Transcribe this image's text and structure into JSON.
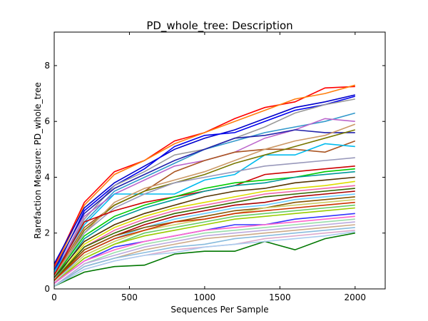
{
  "chart_data": {
    "type": "line",
    "title": "PD_whole_tree: Description",
    "xlabel": "Sequences Per Sample",
    "ylabel": "Rarefaction Measure: PD_whole_tree",
    "xlim": [
      0,
      2200
    ],
    "ylim": [
      0,
      9.2
    ],
    "xticks": [
      0,
      500,
      1000,
      1500,
      2000
    ],
    "yticks": [
      0,
      2,
      4,
      6,
      8
    ],
    "xtick_labels": [
      "0",
      "500",
      "1000",
      "1500",
      "2000"
    ],
    "ytick_labels": [
      "0",
      "2",
      "4",
      "6",
      "8"
    ],
    "grid": false,
    "legend": "none",
    "x": [
      0,
      200,
      400,
      600,
      800,
      1000,
      1200,
      1400,
      1600,
      1800,
      2000
    ],
    "series": [
      {
        "color": "#ff0000",
        "values": [
          0.8,
          3.1,
          4.2,
          4.6,
          5.3,
          5.6,
          6.1,
          6.5,
          6.7,
          7.2,
          7.25
        ]
      },
      {
        "color": "#ff7f0e",
        "values": [
          0.7,
          3.0,
          4.1,
          4.6,
          5.2,
          5.6,
          6.0,
          6.4,
          6.8,
          7.0,
          7.3
        ]
      },
      {
        "color": "#0000cc",
        "values": [
          0.9,
          2.9,
          3.8,
          4.4,
          5.0,
          5.4,
          5.7,
          6.1,
          6.5,
          6.7,
          6.95
        ]
      },
      {
        "color": "#0000ee",
        "values": [
          0.6,
          2.8,
          3.7,
          4.3,
          5.1,
          5.5,
          5.6,
          6.0,
          6.4,
          6.6,
          6.9
        ]
      },
      {
        "color": "#999999",
        "values": [
          0.5,
          2.5,
          3.7,
          4.2,
          4.8,
          5.0,
          5.4,
          5.8,
          6.3,
          6.6,
          6.8
        ]
      },
      {
        "color": "#3399cc",
        "values": [
          0.6,
          2.4,
          3.5,
          4.0,
          4.5,
          5.0,
          5.3,
          5.6,
          5.8,
          6.0,
          6.3
        ]
      },
      {
        "color": "#bb66cc",
        "values": [
          0.5,
          2.6,
          3.4,
          3.9,
          4.4,
          4.6,
          4.9,
          5.4,
          5.7,
          6.1,
          6.0
        ]
      },
      {
        "color": "#2222aa",
        "values": [
          0.7,
          2.7,
          3.6,
          4.1,
          4.6,
          5.0,
          5.4,
          5.5,
          5.7,
          5.6,
          5.6
        ]
      },
      {
        "color": "#aa5522",
        "values": [
          0.5,
          2.2,
          3.0,
          3.5,
          4.2,
          4.6,
          4.9,
          5.0,
          5.0,
          4.9,
          5.3
        ]
      },
      {
        "color": "#00bbee",
        "values": [
          0.6,
          2.3,
          3.4,
          3.4,
          3.4,
          3.9,
          4.1,
          4.8,
          4.8,
          5.2,
          5.1
        ]
      },
      {
        "color": "#777700",
        "values": [
          0.4,
          2.1,
          3.0,
          3.5,
          3.8,
          4.1,
          4.5,
          4.8,
          5.1,
          5.4,
          5.7
        ]
      },
      {
        "color": "#cc9966",
        "values": [
          0.5,
          2.0,
          3.1,
          3.6,
          3.9,
          4.2,
          4.6,
          5.0,
          5.3,
          5.5,
          5.9
        ]
      },
      {
        "color": "#9999bb",
        "values": [
          0.4,
          2.0,
          2.9,
          3.4,
          3.8,
          4.0,
          4.2,
          4.4,
          4.5,
          4.6,
          4.7
        ]
      },
      {
        "color": "#cc0000",
        "values": [
          0.5,
          2.4,
          2.8,
          3.1,
          3.3,
          3.5,
          3.7,
          4.1,
          4.2,
          4.3,
          4.4
        ]
      },
      {
        "color": "#00cc00",
        "values": [
          0.4,
          1.9,
          2.6,
          3.0,
          3.3,
          3.6,
          3.8,
          3.9,
          4.0,
          4.2,
          4.3
        ]
      },
      {
        "color": "#009999",
        "values": [
          0.3,
          1.8,
          2.5,
          2.9,
          3.2,
          3.5,
          3.7,
          3.8,
          4.0,
          4.1,
          4.2
        ]
      },
      {
        "color": "#553300",
        "values": [
          0.4,
          1.7,
          2.3,
          2.7,
          3.0,
          3.3,
          3.5,
          3.6,
          3.8,
          3.9,
          4.0
        ]
      },
      {
        "color": "#dddd00",
        "values": [
          0.3,
          1.6,
          2.2,
          2.6,
          2.9,
          3.1,
          3.3,
          3.5,
          3.6,
          3.7,
          3.85
        ]
      },
      {
        "color": "#ee66aa",
        "values": [
          0.3,
          1.5,
          2.1,
          2.5,
          2.8,
          3.0,
          3.2,
          3.4,
          3.5,
          3.6,
          3.7
        ]
      },
      {
        "color": "#336600",
        "values": [
          0.3,
          1.5,
          2.0,
          2.4,
          2.7,
          2.9,
          3.1,
          3.3,
          3.4,
          3.5,
          3.6
        ]
      },
      {
        "color": "#aa0000",
        "values": [
          0.3,
          1.4,
          1.9,
          2.3,
          2.6,
          2.8,
          3.0,
          3.1,
          3.3,
          3.4,
          3.5
        ]
      },
      {
        "color": "#66ccff",
        "values": [
          0.2,
          1.3,
          1.8,
          2.2,
          2.5,
          2.7,
          2.9,
          3.0,
          3.2,
          3.3,
          3.4
        ]
      },
      {
        "color": "#885500",
        "values": [
          0.3,
          1.4,
          1.9,
          2.2,
          2.4,
          2.6,
          2.8,
          2.9,
          3.1,
          3.2,
          3.3
        ]
      },
      {
        "color": "#cccc66",
        "values": [
          0.2,
          1.2,
          1.7,
          2.1,
          2.3,
          2.5,
          2.7,
          2.9,
          3.0,
          3.1,
          3.2
        ]
      },
      {
        "color": "#cc3300",
        "values": [
          0.3,
          1.3,
          1.8,
          2.1,
          2.4,
          2.5,
          2.7,
          2.8,
          2.9,
          3.0,
          3.1
        ]
      },
      {
        "color": "#66cc66",
        "values": [
          0.2,
          1.1,
          1.6,
          2.0,
          2.2,
          2.4,
          2.6,
          2.7,
          2.8,
          2.9,
          3.0
        ]
      },
      {
        "color": "#99cc00",
        "values": [
          0.2,
          1.1,
          1.6,
          1.9,
          2.1,
          2.3,
          2.5,
          2.6,
          2.7,
          2.8,
          2.9
        ]
      },
      {
        "color": "#3333ff",
        "values": [
          0.2,
          1.0,
          1.5,
          1.7,
          1.9,
          2.1,
          2.3,
          2.3,
          2.5,
          2.6,
          2.7
        ]
      },
      {
        "color": "#ff66cc",
        "values": [
          0.2,
          1.0,
          1.4,
          1.7,
          1.9,
          2.1,
          2.2,
          2.3,
          2.4,
          2.5,
          2.6
        ]
      },
      {
        "color": "#99ddaa",
        "values": [
          0.1,
          0.9,
          1.3,
          1.6,
          1.8,
          2.0,
          2.1,
          2.2,
          2.3,
          2.4,
          2.5
        ]
      },
      {
        "color": "#bbaadd",
        "values": [
          0.1,
          0.9,
          1.2,
          1.5,
          1.7,
          1.9,
          2.0,
          2.1,
          2.2,
          2.3,
          2.4
        ]
      },
      {
        "color": "#ccaa88",
        "values": [
          0.1,
          0.8,
          1.1,
          1.4,
          1.6,
          1.8,
          1.9,
          2.0,
          2.1,
          2.2,
          2.3
        ]
      },
      {
        "color": "#88bbdd",
        "values": [
          0.1,
          0.8,
          1.1,
          1.3,
          1.5,
          1.6,
          1.8,
          1.9,
          2.0,
          2.1,
          2.2
        ]
      },
      {
        "color": "#ddaacc",
        "values": [
          0.1,
          0.7,
          1.0,
          1.2,
          1.4,
          1.5,
          1.6,
          1.8,
          1.9,
          2.0,
          2.1
        ]
      },
      {
        "color": "#007700",
        "values": [
          0.1,
          0.6,
          0.8,
          0.85,
          1.25,
          1.35,
          1.35,
          1.7,
          1.4,
          1.8,
          2.0
        ]
      },
      {
        "color": "#aaccee",
        "values": [
          0.1,
          0.7,
          1.0,
          1.2,
          1.3,
          1.5,
          1.6,
          1.7,
          1.8,
          1.9,
          2.05
        ]
      }
    ]
  }
}
